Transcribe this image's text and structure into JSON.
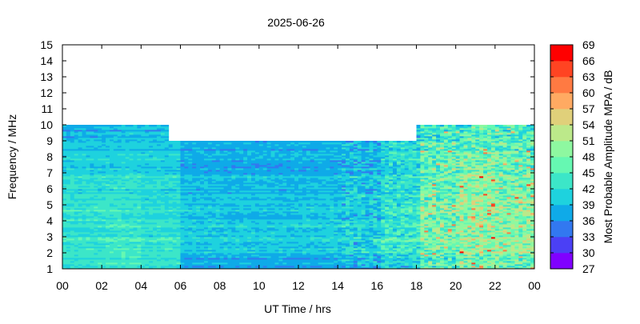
{
  "chart_data": {
    "type": "heatmap",
    "title": "2025-06-26",
    "xlabel": "UT Time / hrs",
    "ylabel": "Frequency / MHz",
    "colorbar_label": "Most Probable Amplitude MPA / dB",
    "xlim": [
      0,
      24
    ],
    "ylim": [
      1,
      15
    ],
    "xticks": [
      "00",
      "02",
      "04",
      "06",
      "08",
      "10",
      "12",
      "14",
      "16",
      "18",
      "20",
      "22",
      "00"
    ],
    "yticks": [
      "1",
      "2",
      "3",
      "4",
      "5",
      "6",
      "7",
      "8",
      "9",
      "10",
      "11",
      "12",
      "13",
      "14",
      "15"
    ],
    "colorbar_ticks": [
      27,
      30,
      33,
      36,
      39,
      42,
      45,
      48,
      51,
      54,
      57,
      60,
      63,
      66,
      69
    ],
    "colorbar_colors": [
      "#8000ff",
      "#4b40f5",
      "#3278f0",
      "#0faae8",
      "#1ed2de",
      "#3ce6c8",
      "#66f8b2",
      "#8ef8a0",
      "#bce98a",
      "#e0d07a",
      "#ffaa62",
      "#ff7a42",
      "#ff4422",
      "#ff0000"
    ],
    "coverage": [
      {
        "from_hr": 0,
        "to_hr": 5.5,
        "max_mhz": 10
      },
      {
        "from_hr": 5.5,
        "to_hr": 18,
        "max_mhz": 9
      },
      {
        "from_hr": 18,
        "to_hr": 24,
        "max_mhz": 10
      }
    ],
    "grid_note_freq_rows_mhz": [
      1,
      2,
      3,
      4,
      5,
      6,
      7,
      8,
      9
    ],
    "grid_time_cols_hr": [
      0,
      2,
      4,
      6,
      8,
      10,
      12,
      14,
      16,
      18,
      20,
      22
    ],
    "values_db": [
      [
        42,
        43,
        42,
        37,
        37,
        37,
        37,
        38,
        40,
        45,
        47,
        46
      ],
      [
        43,
        44,
        43,
        40,
        40,
        40,
        40,
        41,
        44,
        47,
        50,
        49
      ],
      [
        42,
        43,
        42,
        40,
        40,
        40,
        40,
        41,
        43,
        48,
        50,
        49
      ],
      [
        43,
        43,
        42,
        40,
        39,
        39,
        40,
        40,
        43,
        48,
        50,
        49
      ],
      [
        42,
        42,
        41,
        39,
        39,
        39,
        39,
        40,
        42,
        47,
        50,
        48
      ],
      [
        42,
        43,
        42,
        39,
        39,
        39,
        39,
        40,
        42,
        47,
        50,
        48
      ],
      [
        41,
        41,
        41,
        38,
        38,
        38,
        38,
        39,
        42,
        47,
        48,
        47
      ],
      [
        40,
        40,
        40,
        38,
        38,
        38,
        38,
        39,
        42,
        46,
        47,
        46
      ],
      [
        38,
        39,
        39,
        37,
        37,
        37,
        37,
        38,
        40,
        43,
        45,
        44
      ]
    ]
  }
}
